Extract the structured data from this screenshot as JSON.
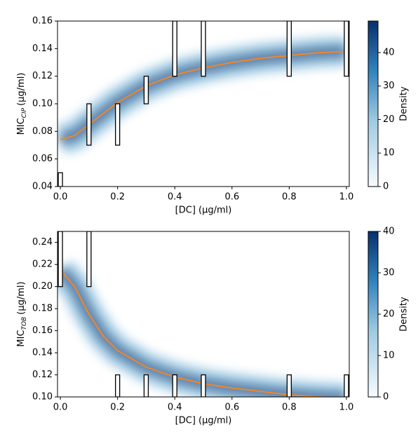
{
  "chart_data": [
    {
      "type": "density-fit",
      "ylabel": {
        "main": "MIC",
        "sub": "CIP",
        "unit": "(μg/ml)"
      },
      "xlabel": "[DC] (μg/ml)",
      "xlim": [
        -0.01,
        1.01
      ],
      "xticks": [
        {
          "value": 0,
          "label": "0.0"
        },
        0.2,
        0.4,
        0.6,
        0.8,
        {
          "value": 1,
          "label": "1.0"
        }
      ],
      "ylim": [
        0.04,
        0.16
      ],
      "yticks": [
        0.04,
        0.06,
        0.08,
        {
          "value": 0.1,
          "label": "0.10"
        },
        0.12,
        0.14,
        0.16
      ],
      "x": [
        0,
        0.05,
        0.1,
        0.15,
        0.2,
        0.3,
        0.4,
        0.5,
        0.6,
        0.7,
        0.8,
        0.9,
        1.0
      ],
      "series": [
        {
          "color": "#f0862a",
          "values": [
            0.074,
            0.077,
            0.085,
            0.093,
            0.101,
            0.113,
            0.121,
            0.126,
            0.13,
            0.133,
            0.135,
            0.137,
            0.138
          ]
        }
      ],
      "intervals": [
        {
          "x": 0,
          "low": 0.04,
          "high": 0.05
        },
        {
          "x": 0.1,
          "low": 0.07,
          "high": 0.1
        },
        {
          "x": 0.2,
          "low": 0.07,
          "high": 0.1
        },
        {
          "x": 0.3,
          "low": 0.1,
          "high": 0.12
        },
        {
          "x": 0.4,
          "low": 0.12,
          "high": 0.16
        },
        {
          "x": 0.5,
          "low": 0.12,
          "high": 0.16
        },
        {
          "x": 0.8,
          "low": 0.12,
          "high": 0.16
        },
        {
          "x": 1.0,
          "low": 0.12,
          "high": 0.16
        }
      ],
      "colorbar": {
        "label": "Density",
        "lim": [
          0,
          49.4
        ],
        "ticks": [
          0,
          10,
          20,
          30,
          40
        ],
        "color": "#08306b"
      }
    },
    {
      "type": "density-fit",
      "ylabel": {
        "main": "MIC",
        "sub": "TOB",
        "unit": "(μg/ml)"
      },
      "xlabel": "[DC] (μg/ml)",
      "xlim": [
        -0.01,
        1.01
      ],
      "xticks": [
        {
          "value": 0,
          "label": "0.0"
        },
        0.2,
        0.4,
        0.6,
        0.8,
        {
          "value": 1,
          "label": "1.0"
        }
      ],
      "ylim": [
        0.1,
        0.25
      ],
      "yticks": [
        {
          "value": 0.1,
          "label": "0.10"
        },
        0.12,
        0.14,
        0.16,
        0.18,
        {
          "value": 0.2,
          "label": "0.20"
        },
        0.22,
        0.24
      ],
      "x": [
        0,
        0.05,
        0.1,
        0.15,
        0.2,
        0.3,
        0.4,
        0.5,
        0.6,
        0.7,
        0.8,
        0.9,
        1.0
      ],
      "series": [
        {
          "color": "#f0862a",
          "values": [
            0.215,
            0.2,
            0.175,
            0.155,
            0.142,
            0.127,
            0.118,
            0.112,
            0.108,
            0.105,
            0.102,
            0.1,
            0.099
          ]
        }
      ],
      "intervals": [
        {
          "x": 0,
          "low": 0.2,
          "high": 0.25
        },
        {
          "x": 0.1,
          "low": 0.2,
          "high": 0.25
        },
        {
          "x": 0.2,
          "low": 0.1,
          "high": 0.12
        },
        {
          "x": 0.3,
          "low": 0.1,
          "high": 0.12
        },
        {
          "x": 0.4,
          "low": 0.1,
          "high": 0.12
        },
        {
          "x": 0.5,
          "low": 0.1,
          "high": 0.12
        },
        {
          "x": 0.8,
          "low": 0.1,
          "high": 0.12
        },
        {
          "x": 1.0,
          "low": 0.1,
          "high": 0.12
        }
      ],
      "colorbar": {
        "label": "Density",
        "lim": [
          0,
          40
        ],
        "ticks": [
          0,
          10,
          20,
          30,
          40
        ],
        "color": "#08306b"
      }
    }
  ]
}
